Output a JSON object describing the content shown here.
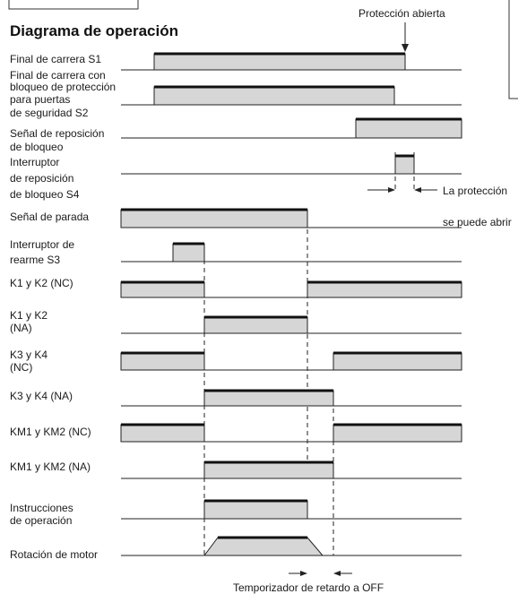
{
  "title": "Diagrama de operación",
  "annotations": {
    "protection_open": "Protección abierta",
    "can_open_line1": "La protección",
    "can_open_line2": "se puede abrir",
    "timer": "Temporizador de retardo a OFF"
  },
  "signals": [
    {
      "id": "s1",
      "label": [
        "Final de carrera S1"
      ],
      "high": [
        [
          172,
          452
        ]
      ]
    },
    {
      "id": "s2",
      "label": [
        "Final de carrera con",
        "bloqueo de protección",
        "para puertas",
        "de seguridad S2"
      ],
      "high": [
        [
          172,
          440
        ]
      ]
    },
    {
      "id": "reset-signal",
      "label": [
        "Señal de reposición",
        "de bloqueo"
      ],
      "high": [
        [
          397,
          515
        ]
      ]
    },
    {
      "id": "s4",
      "label": [
        "Interruptor",
        "de reposición",
        "de bloqueo S4"
      ],
      "high": [
        [
          441,
          462
        ]
      ]
    },
    {
      "id": "stop",
      "label": [
        "Señal de parada"
      ],
      "high": [
        [
          135,
          343
        ]
      ]
    },
    {
      "id": "s3",
      "label": [
        "Interruptor de",
        "rearme S3"
      ],
      "high": [
        [
          193,
          228
        ]
      ]
    },
    {
      "id": "k1k2-nc",
      "label": [
        "K1 y K2 (NC)"
      ],
      "high": [
        [
          135,
          228
        ],
        [
          343,
          515
        ]
      ]
    },
    {
      "id": "k1k2-na",
      "label": [
        "K1 y K2",
        "(NA)"
      ],
      "high": [
        [
          228,
          343
        ]
      ]
    },
    {
      "id": "k3k4-nc",
      "label": [
        "K3 y K4",
        "(NC)"
      ],
      "high": [
        [
          135,
          228
        ],
        [
          372,
          515
        ]
      ]
    },
    {
      "id": "k3k4-na",
      "label": [
        "K3 y K4 (NA)"
      ],
      "high": [
        [
          228,
          372
        ]
      ]
    },
    {
      "id": "km-nc",
      "label": [
        "KM1 y KM2 (NC)"
      ],
      "high": [
        [
          135,
          228
        ],
        [
          372,
          515
        ]
      ]
    },
    {
      "id": "km-na",
      "label": [
        "KM1 y KM2 (NA)"
      ],
      "high": [
        [
          228,
          372
        ]
      ]
    },
    {
      "id": "instructions",
      "label": [
        "Instrucciones",
        "de operación"
      ],
      "high": [
        [
          228,
          343
        ]
      ]
    },
    {
      "id": "motor",
      "label": [
        "Rotación de motor"
      ],
      "ramp": [
        228,
        243,
        343,
        360
      ]
    }
  ]
}
